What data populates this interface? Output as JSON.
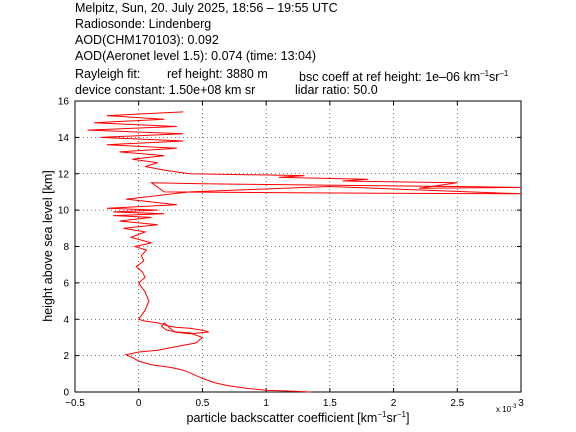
{
  "header": {
    "line1": "Melpitz, Sun, 20. July 2025, 18:56 – 19:55 UTC",
    "line2": "Radiosonde: Lindenberg",
    "line3": "AOD(CHM170103): 0.092",
    "line4": "AOD(Aeronet level 1.5): 0.074   (time: 13:04)",
    "line5_a": "Rayleigh fit:",
    "line5_b": "ref height: 3880 m",
    "line5_c_prefix": "bsc coeff at ref height: 1e–06 km",
    "line5_c_exp1": "–1",
    "line5_c_mid": "sr",
    "line5_c_exp2": "–1",
    "line6_a": "device constant: 1.50e+08 km sr",
    "line6_b": "lidar ratio: 50.0"
  },
  "chart_data": {
    "type": "line",
    "xlabel_prefix": "particle backscatter coefficient [km",
    "xlabel_exp1": "−1",
    "xlabel_mid": "sr",
    "xlabel_exp2": "−1",
    "xlabel_suffix": "]",
    "ylabel": "height above sea level [km]",
    "x_multiplier": "x 10",
    "x_multiplier_exp": "-3",
    "xlim": [
      -0.5,
      3
    ],
    "ylim": [
      0,
      16
    ],
    "xticks": [
      "−0.5",
      "0",
      "0.5",
      "1",
      "1.5",
      "2",
      "2.5",
      "3"
    ],
    "xtick_values": [
      -0.5,
      0,
      0.5,
      1,
      1.5,
      2,
      2.5,
      3
    ],
    "yticks": [
      "0",
      "2",
      "4",
      "6",
      "8",
      "10",
      "12",
      "14",
      "16"
    ],
    "ytick_values": [
      0,
      2,
      4,
      6,
      8,
      10,
      12,
      14,
      16
    ],
    "grid": true,
    "line_color": "#ff0000",
    "series": [
      {
        "x": [
          1.35,
          1.2,
          1.0,
          0.85,
          0.7,
          0.6,
          0.5,
          0.42,
          0.35,
          0.25,
          0.1,
          0.0,
          -0.05,
          -0.1,
          0.0,
          0.15,
          0.3,
          0.45,
          0.5,
          0.4,
          0.3,
          0.22,
          0.18,
          0.2,
          0.28,
          0.4,
          0.48,
          0.55,
          0.5,
          0.4,
          0.3,
          0.25,
          0.22,
          0.2,
          0.15,
          0.05,
          0.0,
          0.05,
          0.08,
          0.05,
          0.0,
          0.05,
          0.03,
          -0.02,
          0.04,
          0.02,
          0.06,
          -0.03,
          0.1,
          -0.06,
          0.05,
          -0.12,
          0.15,
          -0.15,
          0.1,
          -0.2,
          0.2,
          -0.2,
          0.15,
          -0.25,
          0.3,
          -0.1,
          0.4,
          1.5,
          3.0,
          1.2,
          0.2,
          0.1,
          0.5,
          2.5,
          3.0,
          2.2,
          2.5,
          1.6,
          1.8,
          1.1,
          1.3,
          0.4,
          0.2,
          0.05,
          0.15,
          -0.05,
          0.2,
          -0.15,
          0.3,
          -0.25,
          0.35,
          -0.3,
          0.35,
          -0.4,
          0.3,
          -0.35,
          0.2,
          -0.25,
          0.35
        ],
        "y": [
          0.0,
          0.05,
          0.1,
          0.2,
          0.35,
          0.5,
          0.75,
          1.0,
          1.2,
          1.35,
          1.5,
          1.7,
          1.9,
          2.05,
          2.2,
          2.3,
          2.5,
          2.7,
          3.0,
          3.25,
          3.3,
          3.4,
          3.6,
          3.8,
          3.3,
          3.2,
          3.25,
          3.3,
          3.4,
          3.5,
          3.55,
          3.6,
          3.65,
          3.7,
          3.8,
          3.9,
          4.0,
          4.5,
          5.0,
          5.5,
          6.0,
          6.3,
          6.6,
          6.9,
          7.2,
          7.5,
          7.8,
          8.0,
          8.2,
          8.5,
          8.8,
          9.0,
          9.2,
          9.4,
          9.6,
          9.7,
          9.8,
          9.9,
          10.0,
          10.1,
          10.3,
          10.6,
          11.0,
          11.3,
          10.9,
          10.95,
          11.0,
          11.5,
          11.45,
          11.3,
          11.25,
          11.2,
          11.5,
          11.6,
          11.7,
          11.8,
          11.9,
          12.0,
          12.2,
          12.4,
          12.6,
          12.8,
          13.0,
          13.2,
          13.4,
          13.6,
          13.8,
          14.0,
          14.2,
          14.4,
          14.6,
          14.8,
          15.0,
          15.2,
          15.4
        ]
      }
    ]
  }
}
